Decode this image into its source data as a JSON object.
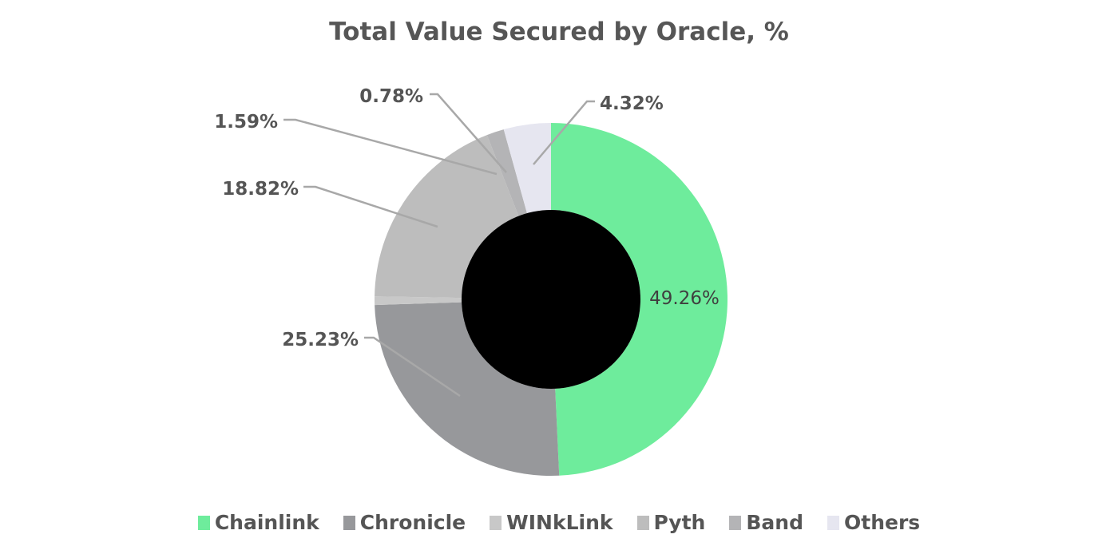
{
  "title": "Total Value Secured by Oracle, %",
  "chart_data": {
    "type": "pie",
    "variant": "donut",
    "title": "Total Value Secured by Oracle, %",
    "categories": [
      "Chainlink",
      "Chronicle",
      "WINkLink",
      "Pyth",
      "Band",
      "Others"
    ],
    "values": [
      49.26,
      25.23,
      0.78,
      18.82,
      1.59,
      4.32
    ],
    "colors": [
      "#6eec9c",
      "#97989b",
      "#c8c8c8",
      "#bdbdbd",
      "#b4b4b6",
      "#e6e6f0"
    ],
    "data_labels": [
      "49.26%",
      "25.23%",
      "0.78%",
      "18.82%",
      "1.59%",
      "4.32%"
    ],
    "legend_position": "bottom",
    "start_angle_deg": 0,
    "direction": "clockwise"
  },
  "legend": [
    {
      "label": "Chainlink",
      "color": "#6eec9c"
    },
    {
      "label": "Chronicle",
      "color": "#97989b"
    },
    {
      "label": "WINkLink",
      "color": "#c8c8c8"
    },
    {
      "label": "Pyth",
      "color": "#bdbdbd"
    },
    {
      "label": "Band",
      "color": "#b4b4b6"
    },
    {
      "label": "Others",
      "color": "#e6e6f0"
    }
  ],
  "labels": {
    "chainlink": "49.26%",
    "chronicle": "25.23%",
    "pyth": "18.82%",
    "band": "1.59%",
    "winklink": "0.78%",
    "others": "4.32%"
  }
}
